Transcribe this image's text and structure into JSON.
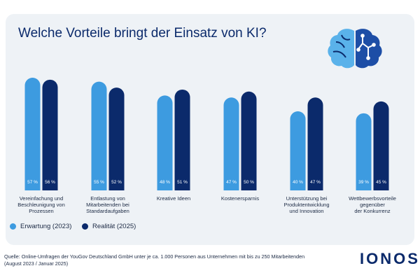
{
  "title": "Welche Vorteile bringt der Einsatz von KI?",
  "colors": {
    "expectation": "#3d9be0",
    "reality": "#0b2a6b",
    "text": "#0b2a6b"
  },
  "chart_data": {
    "type": "bar",
    "title": "Welche Vorteile bringt der Einsatz von KI?",
    "categories": [
      [
        "Vereinfachung und",
        "Beschleunigung von",
        "Prozessen"
      ],
      [
        "Entlastung von",
        "Mitarbeitenden bei",
        "Standardaufgaben"
      ],
      [
        "Kreative Ideen"
      ],
      [
        "Kostenersparnis"
      ],
      [
        "Unterstützung bei",
        "Produktentwicklung",
        "und Innovation"
      ],
      [
        "Wettbewerbsvorteile",
        "gegenüber",
        "der Konkurrenz"
      ]
    ],
    "series": [
      {
        "name": "Erwartung (2023)",
        "values": [
          57,
          55,
          48,
          47,
          40,
          39
        ],
        "labels": [
          "57 %",
          "55 %",
          "48 %",
          "47 %",
          "40 %",
          "39 %"
        ]
      },
      {
        "name": "Realität (2025)",
        "values": [
          56,
          52,
          51,
          50,
          47,
          45
        ],
        "labels": [
          "56 %",
          "52 %",
          "51 %",
          "50 %",
          "47 %",
          "45 %"
        ]
      }
    ],
    "ylim": [
      0,
      57
    ],
    "legend": "bottom-left"
  },
  "legend": {
    "expectation": "Erwartung (2023)",
    "reality": "Realität (2025)"
  },
  "source": "Quelle: Online-Umfragen der YouGov Deutschland GmbH unter je ca. 1.000 Personen aus Unternehmen mit bis zu 250 Mitarbeitenden (August 2023 / Januar 2025)",
  "logo": "IONOS",
  "icons": [
    "brain-ai-icon"
  ]
}
